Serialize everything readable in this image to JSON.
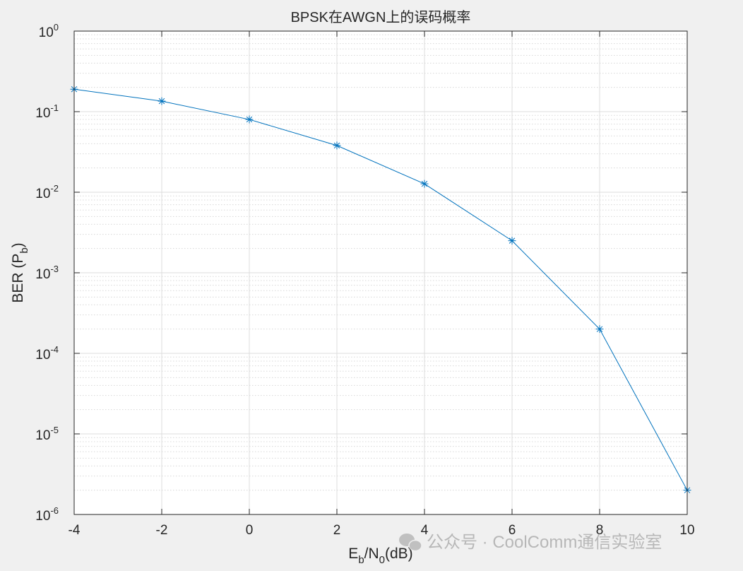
{
  "chart_data": {
    "type": "line",
    "title": "BPSK在AWGN上的误码概率",
    "xlabel": [
      "E",
      "b",
      "/N",
      "0",
      "(dB)"
    ],
    "ylabel": [
      "BER (P",
      "b",
      ")"
    ],
    "x": [
      -4,
      -2,
      0,
      2,
      4,
      6,
      8,
      10
    ],
    "series": [
      {
        "color": "#0072bd",
        "marker": "*",
        "values": [
          0.19,
          0.135,
          0.08,
          0.038,
          0.0127,
          0.0025,
          0.0002,
          2e-06
        ]
      }
    ],
    "xlim": [
      -4,
      10
    ],
    "xticks": [
      -4,
      -2,
      0,
      2,
      4,
      6,
      8,
      10
    ],
    "ylim": [
      1e-06,
      1
    ],
    "yscale": "log",
    "yticks": [
      {
        "value": 1e-06,
        "label": "10",
        "exponent": "-6"
      },
      {
        "value": 1e-05,
        "label": "10",
        "exponent": "-5"
      },
      {
        "value": 0.0001,
        "label": "10",
        "exponent": "-4"
      },
      {
        "value": 0.001,
        "label": "10",
        "exponent": "-3"
      },
      {
        "value": 0.01,
        "label": "10",
        "exponent": "-2"
      },
      {
        "value": 0.1,
        "label": "10",
        "exponent": "-1"
      },
      {
        "value": 1,
        "label": "10",
        "exponent": "0"
      }
    ],
    "grid": true,
    "minor_grid": true,
    "watermark": "公众号 · CoolComm通信实验室"
  }
}
